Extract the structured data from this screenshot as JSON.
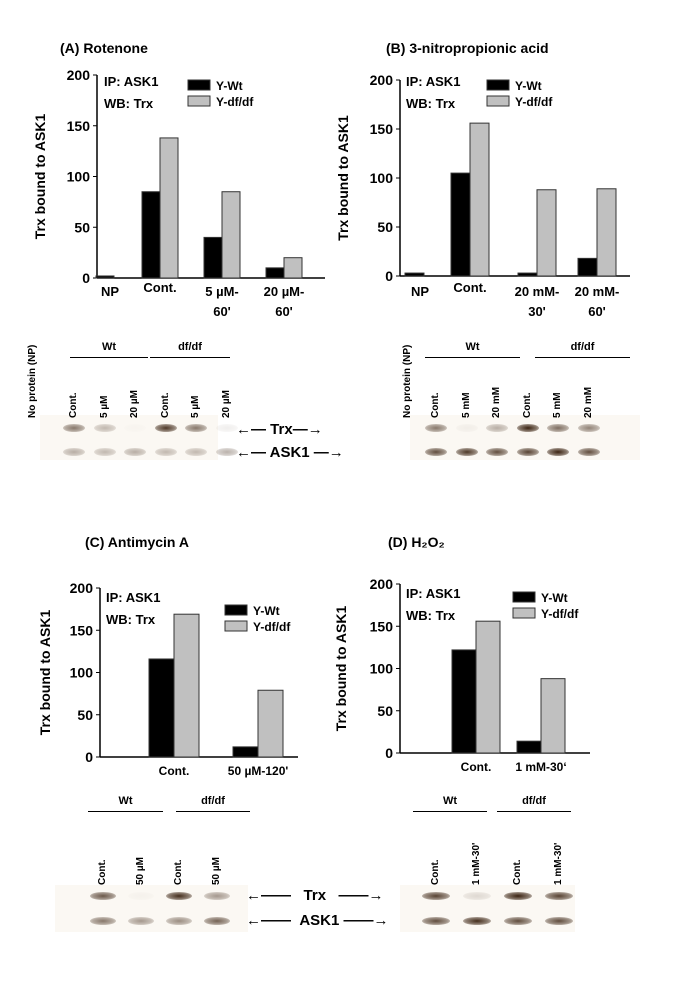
{
  "colors": {
    "wt": "#000000",
    "dfdf": "#c0c0c0",
    "band": "#3a2210"
  },
  "chart_data": [
    {
      "type": "bar",
      "title": "(A)   Rotenone",
      "ylabel": "Trx bound to ASK1",
      "ylim": [
        0,
        200
      ],
      "yticks": [
        "0",
        "50",
        "100",
        "150",
        "200"
      ],
      "annotation": [
        "IP: ASK1",
        "WB: Trx"
      ],
      "legend": [
        "Y-Wt",
        "Y-df/df"
      ],
      "legend_position": "top-right",
      "categories": [
        [
          "NP"
        ],
        [
          "Cont."
        ],
        [
          "5 µM-",
          "60'"
        ],
        [
          "20 µM-",
          "60'"
        ]
      ],
      "series": [
        {
          "name": "Y-Wt",
          "values": [
            2,
            85,
            40,
            10
          ]
        },
        {
          "name": "Y-df/df",
          "values": [
            null,
            138,
            85,
            20
          ]
        }
      ]
    },
    {
      "type": "bar",
      "title": "(B) 3-nitropropionic acid",
      "ylabel": "Trx bound to ASK1",
      "ylim": [
        0,
        200
      ],
      "yticks": [
        "0",
        "50",
        "100",
        "150",
        "200"
      ],
      "annotation": [
        "IP: ASK1",
        "WB: Trx"
      ],
      "legend": [
        "Y-Wt",
        "Y-df/df"
      ],
      "legend_position": "top-right",
      "categories": [
        [
          "NP"
        ],
        [
          "Cont."
        ],
        [
          "20 mM-",
          "30'"
        ],
        [
          "20 mM-",
          "60'"
        ]
      ],
      "series": [
        {
          "name": "Y-Wt",
          "values": [
            3,
            105,
            3,
            18
          ]
        },
        {
          "name": "Y-df/df",
          "values": [
            null,
            156,
            88,
            89
          ]
        }
      ]
    },
    {
      "type": "bar",
      "title": "(C)  Antimycin A",
      "ylabel": "Trx bound to ASK1",
      "ylim": [
        0,
        200
      ],
      "yticks": [
        "0",
        "50",
        "100",
        "150",
        "200"
      ],
      "annotation": [
        "IP: ASK1",
        "WB: Trx"
      ],
      "legend": [
        "Y-Wt",
        "Y-df/df"
      ],
      "legend_position": "top-right",
      "categories": [
        [
          "Cont."
        ],
        [
          "50 µM-120'"
        ]
      ],
      "series": [
        {
          "name": "Y-Wt",
          "values": [
            116,
            12
          ]
        },
        {
          "name": "Y-df/df",
          "values": [
            169,
            79
          ]
        }
      ]
    },
    {
      "type": "bar",
      "title": "(D)  H₂O₂",
      "ylabel": "Trx bound to ASK1",
      "ylim": [
        0,
        200
      ],
      "yticks": [
        "0",
        "50",
        "100",
        "150",
        "200"
      ],
      "annotation": [
        "IP: ASK1",
        "WB: Trx"
      ],
      "legend": [
        "Y-Wt",
        "Y-df/df"
      ],
      "legend_position": "top-right",
      "categories": [
        [
          "Cont."
        ],
        [
          "1 mM-30‘"
        ]
      ],
      "series": [
        {
          "name": "Y-Wt",
          "values": [
            122,
            14
          ]
        },
        {
          "name": "Y-df/df",
          "values": [
            156,
            88
          ]
        }
      ]
    }
  ],
  "blots": [
    {
      "np_label": "No protein (NP)",
      "groups": [
        "Wt",
        "df/df"
      ],
      "lanes": [
        "Cont.",
        "5 µM",
        "20 µM",
        "Cont.",
        "5 µM",
        "20 µM"
      ],
      "trx": [
        0.6,
        0.3,
        0.02,
        0.9,
        0.6,
        0.08
      ],
      "ask1": [
        0.35,
        0.3,
        0.35,
        0.3,
        0.3,
        0.35
      ]
    },
    {
      "np_label": "No protein (NP)",
      "groups": [
        "Wt",
        "df/df"
      ],
      "lanes": [
        "Cont.",
        "5 mM",
        "20 mM",
        "Cont.",
        "5 mM",
        "20 mM"
      ],
      "trx": [
        0.6,
        0.05,
        0.35,
        1.0,
        0.65,
        0.55
      ],
      "ask1": [
        0.8,
        0.9,
        0.8,
        0.85,
        1.0,
        0.8
      ]
    },
    {
      "groups": [
        "Wt",
        "df/df"
      ],
      "lanes": [
        "Cont.",
        "50 µM",
        "Cont.",
        "50 µM"
      ],
      "trx": [
        0.75,
        0.03,
        0.95,
        0.45
      ],
      "ask1": [
        0.6,
        0.45,
        0.5,
        0.7
      ]
    },
    {
      "groups": [
        "Wt",
        "df/df"
      ],
      "lanes": [
        "Cont.",
        "1 mM-30'",
        "Cont.",
        "1 mM-30'"
      ],
      "trx": [
        0.85,
        0.15,
        1.0,
        0.85
      ],
      "ask1": [
        0.8,
        0.95,
        0.8,
        0.8
      ]
    }
  ],
  "arrows": {
    "trx": "Trx",
    "ask1": "ASK1"
  }
}
